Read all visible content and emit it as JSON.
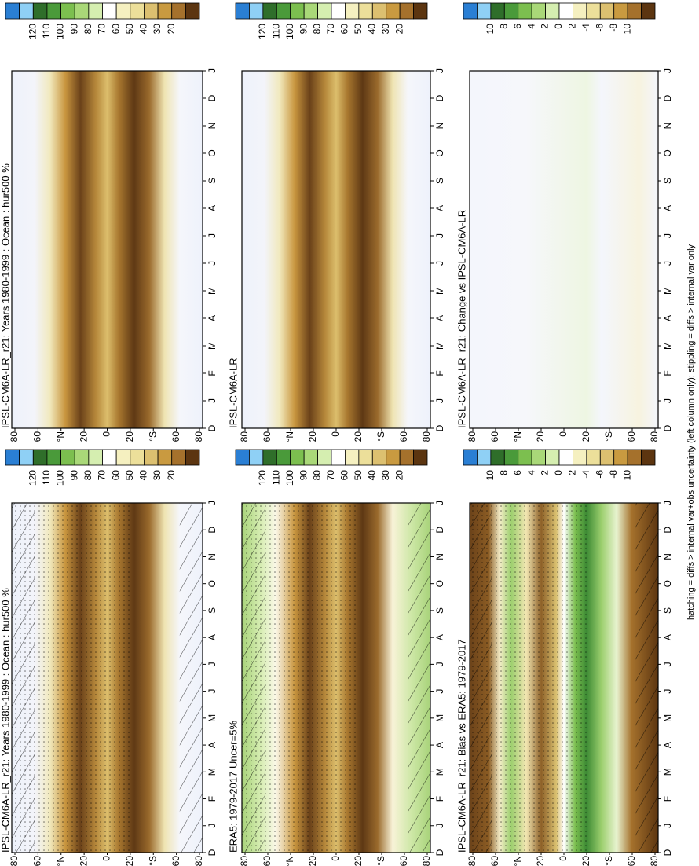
{
  "panels": [
    {
      "title": "IPSL-CM6A-LR_r21: Years 1980-1999 : Ocean : hur500 %",
      "column": 0,
      "half": "lower",
      "field": "humidity",
      "scale": "humidity",
      "hatched": true
    },
    {
      "title": "IPSL-CM6A-LR_r21: Years 1980-1999 : Ocean : hur500 %",
      "column": 0,
      "half": "upper",
      "field": "humidity",
      "scale": "humidity",
      "hatched": false
    },
    {
      "title": "ERA5: 1979-2017 Uncer=5%",
      "column": 1,
      "half": "lower",
      "field": "reference",
      "scale": "humidity",
      "hatched": true
    },
    {
      "title": "IPSL-CM6A-LR",
      "column": 1,
      "half": "upper",
      "field": "humidity",
      "scale": "humidity",
      "hatched": false
    },
    {
      "title": "IPSL-CM6A-LR_r21: Bias vs ERA5: 1979-2017",
      "column": 2,
      "half": "lower",
      "field": "bias",
      "scale": "difference",
      "hatched": true
    },
    {
      "title": "IPSL-CM6A-LR_r21: Change vs IPSL-CM6A-LR",
      "column": 2,
      "half": "upper",
      "field": "change",
      "scale": "difference",
      "hatched": false
    }
  ],
  "months": [
    "D",
    "J",
    "F",
    "M",
    "A",
    "M",
    "J",
    "J",
    "A",
    "S",
    "O",
    "N",
    "D",
    "J"
  ],
  "latitudes": [
    "80",
    "60",
    "°N",
    "20",
    "0",
    "20",
    "°S",
    "60",
    "80"
  ],
  "colorbars": {
    "humidity": [
      "120",
      "110",
      "100",
      "90",
      "80",
      "70",
      "60",
      "50",
      "40",
      "30",
      "20"
    ],
    "difference": [
      "10",
      "8",
      "6",
      "4",
      "2",
      "0",
      "-2",
      "-4",
      "-6",
      "-8",
      "-10"
    ]
  },
  "caption": "hatching = diffs > internal var+obs uncertainty (left column only); stippling = diffs > internal var only"
}
